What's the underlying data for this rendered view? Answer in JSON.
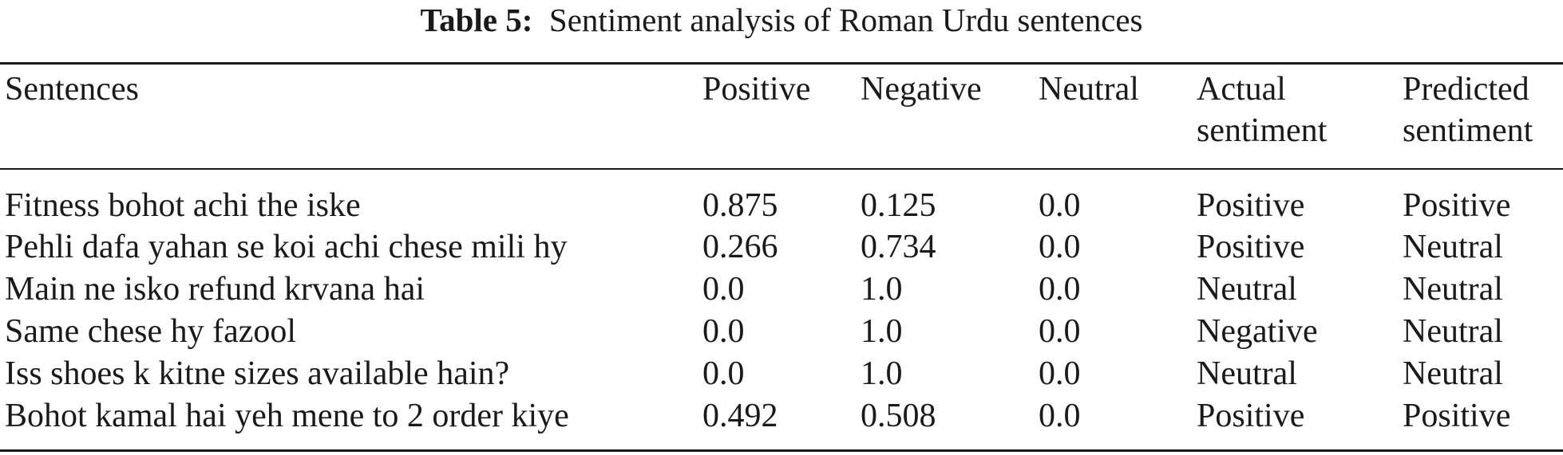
{
  "caption": {
    "label": "Table 5:",
    "text": "Sentiment analysis of Roman Urdu sentences"
  },
  "table": {
    "headers": [
      [
        "Sentences"
      ],
      [
        "Positive"
      ],
      [
        "Negative"
      ],
      [
        "Neutral"
      ],
      [
        "Actual",
        "sentiment"
      ],
      [
        "Predicted",
        "sentiment"
      ]
    ],
    "rows": [
      [
        "Fitness bohot achi the iske",
        "0.875",
        "0.125",
        "0.0",
        "Positive",
        "Positive"
      ],
      [
        "Pehli dafa yahan se koi achi chese mili hy",
        "0.266",
        "0.734",
        "0.0",
        "Positive",
        "Neutral"
      ],
      [
        "Main ne isko refund krvana hai",
        "0.0",
        "1.0",
        "0.0",
        "Neutral",
        "Neutral"
      ],
      [
        "Same chese hy fazool",
        "0.0",
        "1.0",
        "0.0",
        "Negative",
        "Neutral"
      ],
      [
        "Iss shoes k kitne sizes available hain?",
        "0.0",
        "1.0",
        "0.0",
        "Neutral",
        "Neutral"
      ],
      [
        "Bohot kamal hai yeh mene to 2 order kiye",
        "0.492",
        "0.508",
        "0.0",
        "Positive",
        "Positive"
      ]
    ]
  }
}
